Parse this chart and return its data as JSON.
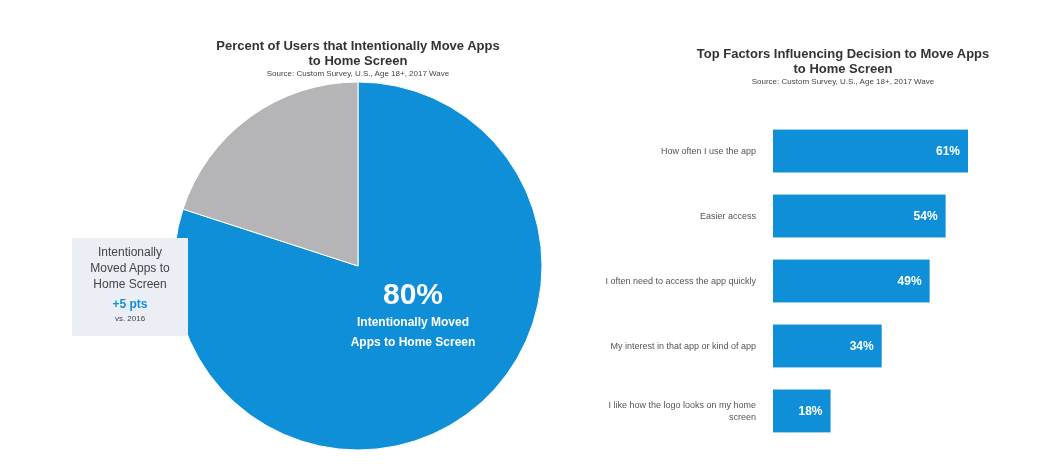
{
  "chart_data": [
    {
      "type": "pie",
      "title": "Percent of Users that Intentionally Move Apps to Home Screen",
      "subtitle": "Source: Custom Survey, U.S., Age 18+, 2017 Wave",
      "categories": [
        "Intentionally Moved Apps to Home Screen",
        null
      ],
      "values": [
        80,
        20
      ],
      "colors": [
        "#108fd9",
        "#b5b5b7"
      ],
      "value_labels": [
        "80%",
        null
      ],
      "annotations": [
        "Intentionally Moved Apps to Home Screen",
        "+5 pts",
        "vs. 2016"
      ]
    },
    {
      "type": "bar",
      "orientation": "horizontal",
      "title": "Top Factors Influencing Decision to Move Apps to Home Screen",
      "subtitle": "Source: Custom Survey, U.S., Age 18+, 2017 Wave",
      "categories": [
        "How often I use the app",
        "Easier access",
        "I often need to access the app quickly",
        "My interest in that app or kind of app",
        "I like how the logo looks on my home screen"
      ],
      "values": [
        61,
        54,
        49,
        34,
        18
      ],
      "color": "#108fd9",
      "value_labels": [
        "61%",
        "54%",
        "49%",
        "34%",
        "18%"
      ]
    }
  ]
}
